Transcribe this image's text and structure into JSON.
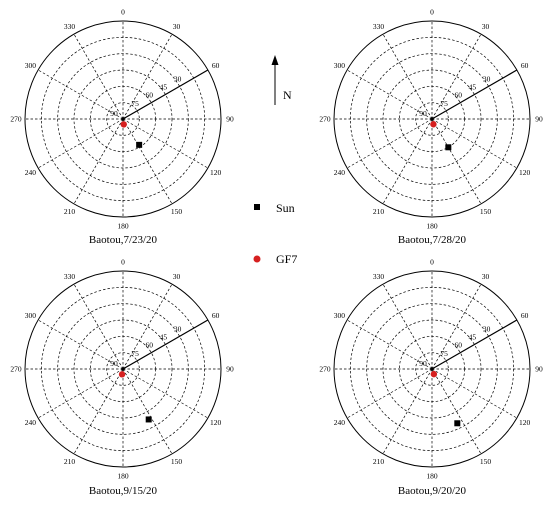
{
  "chart_data": {
    "type": "scatter",
    "subtype": "polar",
    "angle_ticks": [
      "0",
      "30",
      "60",
      "90",
      "120",
      "150",
      "180",
      "210",
      "240",
      "270",
      "300",
      "330"
    ],
    "ring_labels": [
      "90",
      "75",
      "60",
      "45",
      "30"
    ],
    "ring_values": [
      90,
      75,
      60,
      45,
      30
    ],
    "radial_line_azimuth": 60,
    "north_label": "N",
    "legend": [
      {
        "name": "Sun",
        "marker": "square",
        "color": "#000000"
      },
      {
        "name": "GF7",
        "marker": "circle",
        "color": "#d62020"
      }
    ],
    "panels": [
      {
        "title": "Baotou,7/23/20",
        "points": [
          {
            "series": "Sun",
            "azimuth": 148,
            "elevation": 62
          },
          {
            "series": "GF7",
            "azimuth": 172,
            "elevation": 85
          }
        ]
      },
      {
        "title": "Baotou,7/28/20",
        "points": [
          {
            "series": "Sun",
            "azimuth": 150,
            "elevation": 60
          },
          {
            "series": "GF7",
            "azimuth": 165,
            "elevation": 85
          }
        ]
      },
      {
        "title": "Baotou,9/15/20",
        "points": [
          {
            "series": "Sun",
            "azimuth": 153,
            "elevation": 38
          },
          {
            "series": "GF7",
            "azimuth": 190,
            "elevation": 85
          }
        ]
      },
      {
        "title": "Baotou,9/20/20",
        "points": [
          {
            "series": "Sun",
            "azimuth": 155,
            "elevation": 35
          },
          {
            "series": "GF7",
            "azimuth": 160,
            "elevation": 85
          }
        ]
      }
    ]
  }
}
